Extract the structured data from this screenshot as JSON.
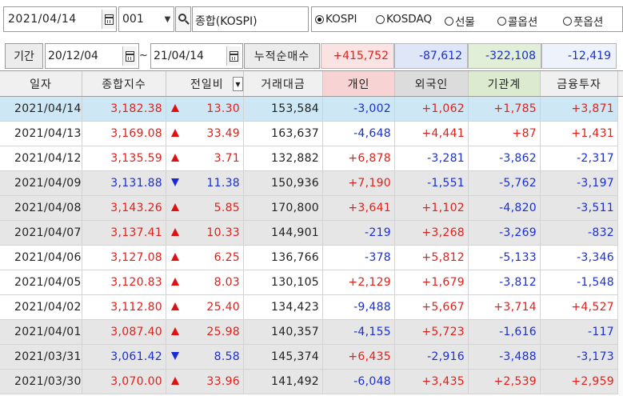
{
  "toolbar": {
    "date": "2021/04/14",
    "code": "001",
    "name": "종합(KOSPI)",
    "radios": [
      {
        "label": "KOSPI",
        "selected": true
      },
      {
        "label": "KOSDAQ",
        "selected": false
      },
      {
        "label": "선물",
        "selected": false
      },
      {
        "label": "콜옵션",
        "selected": false
      },
      {
        "label": "풋옵션",
        "selected": false
      }
    ]
  },
  "period": {
    "label": "기간",
    "from": "20/12/04",
    "tilde": "~",
    "to": "21/04/14",
    "sum_label": "누적순매수",
    "sums": [
      "+415,752",
      "-87,612",
      "-322,108",
      "-12,419"
    ]
  },
  "colors": {
    "up": "#e0201a",
    "down": "#1b2fd0",
    "selected_row": "#cde8f4",
    "individual_header": "#f8d3d3",
    "foreign_header": "#dcdcdc",
    "institution_header": "#dcead0",
    "sum_individual": "#fbe3e3",
    "sum_foreign": "#dfe6f8",
    "sum_institution": "#e2efd8",
    "sum_finance": "#eef2fb"
  },
  "columns": [
    "일자",
    "종합지수",
    "전일비",
    "거래대금",
    "개인",
    "외국인",
    "기관계",
    "금융투자"
  ],
  "rows": [
    {
      "date": "2021/04/14",
      "index": "3,182.38",
      "dir": "up",
      "change": "13.30",
      "volume": "153,584",
      "indiv": "-3,002",
      "foreign": "+1,062",
      "inst": "+1,785",
      "fin": "+3,871"
    },
    {
      "date": "2021/04/13",
      "index": "3,169.08",
      "dir": "up",
      "change": "33.49",
      "volume": "163,637",
      "indiv": "-4,648",
      "foreign": "+4,441",
      "inst": "+87",
      "fin": "+1,431"
    },
    {
      "date": "2021/04/12",
      "index": "3,135.59",
      "dir": "up",
      "change": "3.71",
      "volume": "132,882",
      "indiv": "+6,878",
      "foreign": "-3,281",
      "inst": "-3,862",
      "fin": "-2,317"
    },
    {
      "date": "2021/04/09",
      "index": "3,131.88",
      "dir": "down",
      "change": "11.38",
      "volume": "150,936",
      "indiv": "+7,190",
      "foreign": "-1,551",
      "inst": "-5,762",
      "fin": "-3,197"
    },
    {
      "date": "2021/04/08",
      "index": "3,143.26",
      "dir": "up",
      "change": "5.85",
      "volume": "170,800",
      "indiv": "+3,641",
      "foreign": "+1,102",
      "inst": "-4,820",
      "fin": "-3,511"
    },
    {
      "date": "2021/04/07",
      "index": "3,137.41",
      "dir": "up",
      "change": "10.33",
      "volume": "144,901",
      "indiv": "-219",
      "foreign": "+3,268",
      "inst": "-3,269",
      "fin": "-832"
    },
    {
      "date": "2021/04/06",
      "index": "3,127.08",
      "dir": "up",
      "change": "6.25",
      "volume": "136,766",
      "indiv": "-378",
      "foreign": "+5,812",
      "inst": "-5,133",
      "fin": "-3,346"
    },
    {
      "date": "2021/04/05",
      "index": "3,120.83",
      "dir": "up",
      "change": "8.03",
      "volume": "130,105",
      "indiv": "+2,129",
      "foreign": "+1,679",
      "inst": "-3,812",
      "fin": "-1,548"
    },
    {
      "date": "2021/04/02",
      "index": "3,112.80",
      "dir": "up",
      "change": "25.40",
      "volume": "134,423",
      "indiv": "-9,488",
      "foreign": "+5,667",
      "inst": "+3,714",
      "fin": "+4,527"
    },
    {
      "date": "2021/04/01",
      "index": "3,087.40",
      "dir": "up",
      "change": "25.98",
      "volume": "140,357",
      "indiv": "-4,155",
      "foreign": "+5,723",
      "inst": "-1,616",
      "fin": "-117"
    },
    {
      "date": "2021/03/31",
      "index": "3,061.42",
      "dir": "down",
      "change": "8.58",
      "volume": "145,374",
      "indiv": "+6,435",
      "foreign": "-2,916",
      "inst": "-3,488",
      "fin": "-3,173"
    },
    {
      "date": "2021/03/30",
      "index": "3,070.00",
      "dir": "up",
      "change": "33.96",
      "volume": "141,492",
      "indiv": "-6,048",
      "foreign": "+3,435",
      "inst": "+2,539",
      "fin": "+2,959"
    }
  ]
}
